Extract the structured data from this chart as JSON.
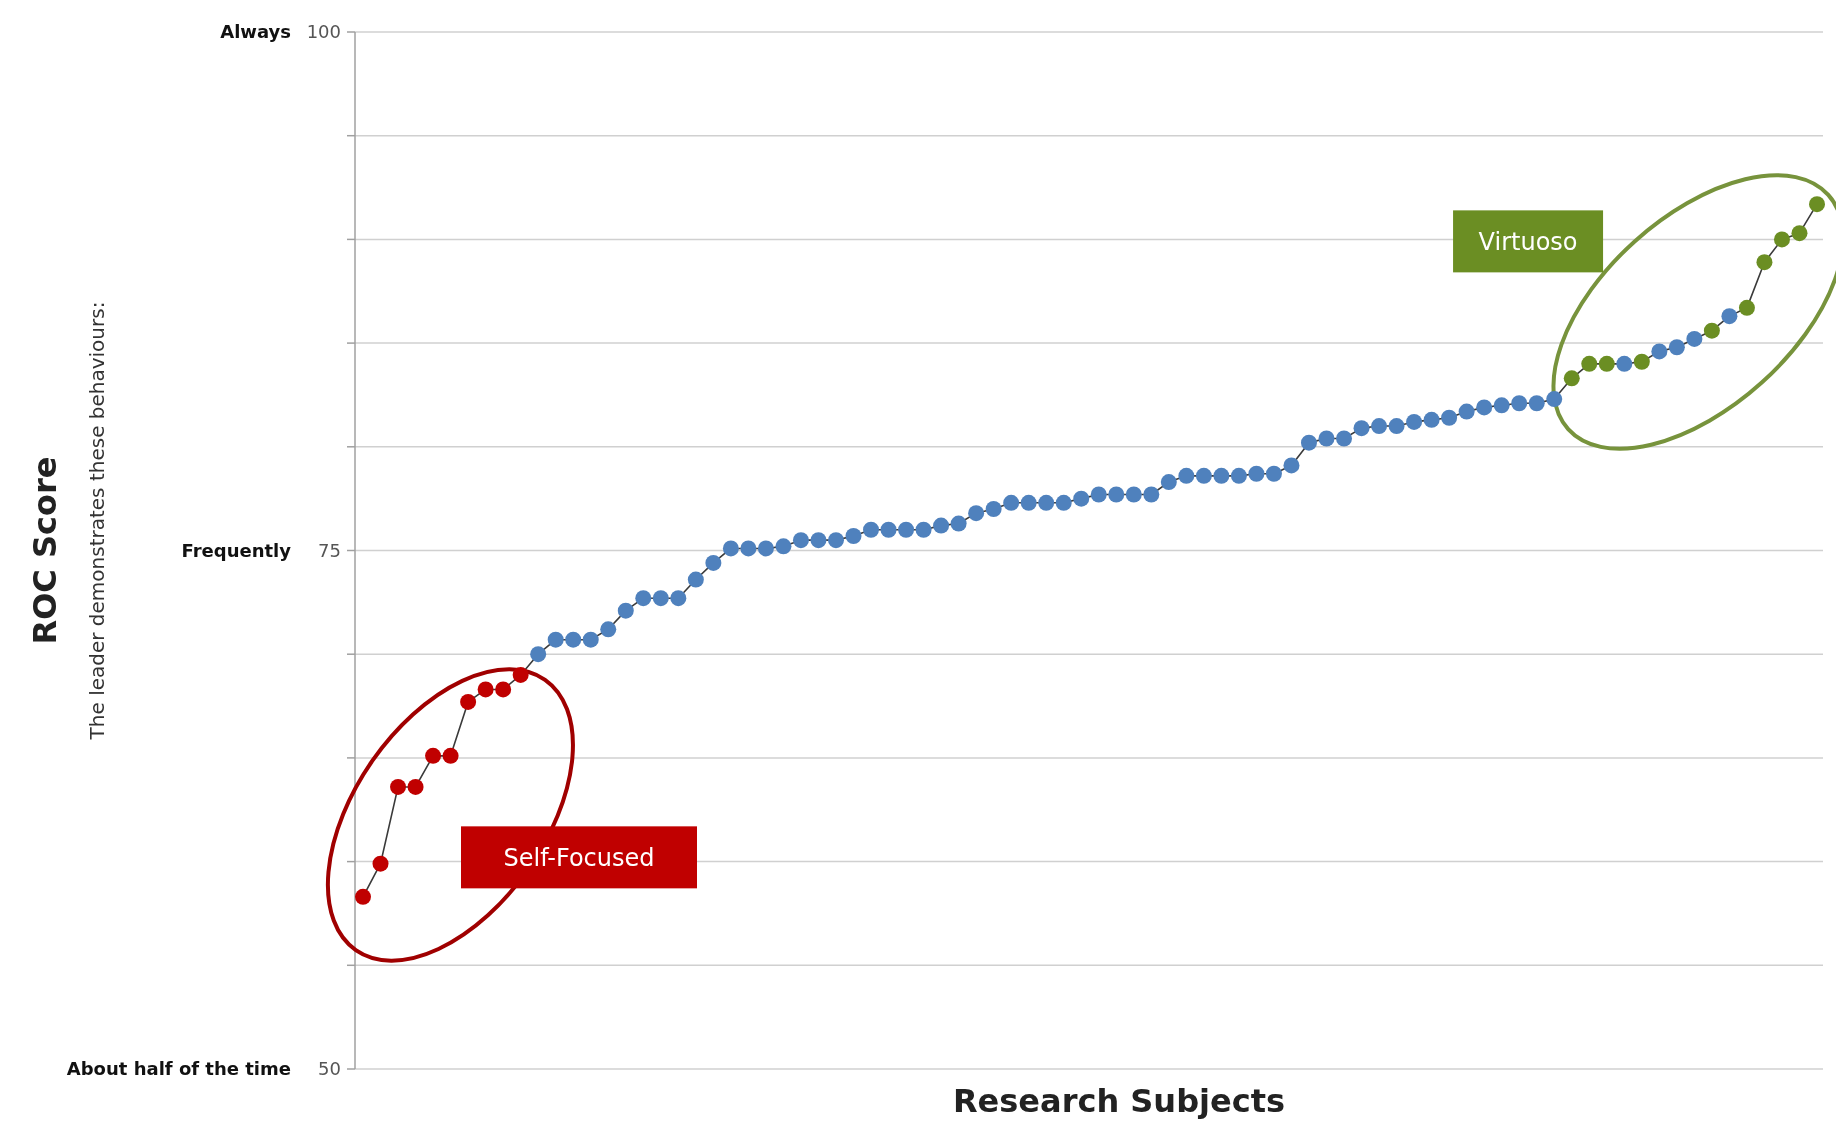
{
  "chart_data": {
    "type": "line",
    "xlabel": "Research Subjects",
    "annotations": [
      "The leader demonstrates these behaviours:",
      "Self-Focused",
      "Virtuoso",
      "About half of the time",
      "Frequently",
      "Always",
      "ROC Score"
    ],
    "categories": [
      null,
      null,
      null,
      null,
      null,
      null,
      null,
      null,
      null,
      null,
      null,
      null,
      null,
      null,
      null,
      null,
      null,
      null,
      null,
      null,
      null,
      null,
      null,
      null,
      null,
      null,
      null,
      null,
      null,
      null,
      null,
      null,
      null,
      null,
      null,
      null,
      null,
      null,
      null,
      null,
      null,
      null,
      null,
      null,
      null,
      null,
      null,
      null,
      null,
      null,
      null,
      null,
      null,
      null,
      null,
      null,
      null,
      null,
      null,
      null,
      null,
      null,
      null,
      null,
      null,
      null,
      null,
      null,
      null,
      null,
      null,
      null,
      null,
      null,
      null,
      null,
      null,
      null,
      null,
      null,
      null,
      null,
      null,
      null
    ],
    "series": [
      {
        "color": "#3a3a3a",
        "values": [
          58.3,
          59.9,
          63.6,
          63.6,
          65.1,
          65.1,
          67.7,
          68.3,
          68.3,
          69.0,
          70.0,
          70.7,
          70.7,
          70.7,
          71.2,
          72.1,
          72.7,
          72.7,
          72.7,
          73.6,
          74.4,
          75.1,
          75.1,
          75.1,
          75.2,
          75.5,
          75.5,
          75.5,
          75.7,
          76.0,
          76.0,
          76.0,
          76.0,
          76.2,
          76.3,
          76.8,
          77.0,
          77.3,
          77.3,
          77.3,
          77.3,
          77.5,
          77.7,
          77.7,
          77.7,
          77.7,
          78.3,
          78.6,
          78.6,
          78.6,
          78.6,
          78.7,
          78.7,
          79.1,
          80.2,
          80.4,
          80.4,
          80.9,
          81.0,
          81.0,
          81.2,
          81.3,
          81.4,
          81.7,
          81.9,
          82.0,
          82.1,
          82.1,
          82.3,
          83.3,
          84.0,
          84.0,
          84.0,
          84.1,
          84.6,
          84.8,
          85.2,
          85.6,
          86.3,
          86.7,
          88.9,
          90.0,
          90.3,
          91.7
        ],
        "colors": [
          "#c00000",
          "#c00000",
          "#c00000",
          "#c00000",
          "#c00000",
          "#c00000",
          "#c00000",
          "#c00000",
          "#c00000",
          "#c00000",
          "#4f81bd",
          "#4f81bd",
          "#4f81bd",
          "#4f81bd",
          "#4f81bd",
          "#4f81bd",
          "#4f81bd",
          "#4f81bd",
          "#4f81bd",
          "#4f81bd",
          "#4f81bd",
          "#4f81bd",
          "#4f81bd",
          "#4f81bd",
          "#4f81bd",
          "#4f81bd",
          "#4f81bd",
          "#4f81bd",
          "#4f81bd",
          "#4f81bd",
          "#4f81bd",
          "#4f81bd",
          "#4f81bd",
          "#4f81bd",
          "#4f81bd",
          "#4f81bd",
          "#4f81bd",
          "#4f81bd",
          "#4f81bd",
          "#4f81bd",
          "#4f81bd",
          "#4f81bd",
          "#4f81bd",
          "#4f81bd",
          "#4f81bd",
          "#4f81bd",
          "#4f81bd",
          "#4f81bd",
          "#4f81bd",
          "#4f81bd",
          "#4f81bd",
          "#4f81bd",
          "#4f81bd",
          "#4f81bd",
          "#4f81bd",
          "#4f81bd",
          "#4f81bd",
          "#4f81bd",
          "#4f81bd",
          "#4f81bd",
          "#4f81bd",
          "#4f81bd",
          "#4f81bd",
          "#4f81bd",
          "#4f81bd",
          "#4f81bd",
          "#4f81bd",
          "#4f81bd",
          "#4f81bd",
          "#6b8e23",
          "#6b8e23",
          "#6b8e23",
          "#4f81bd",
          "#6b8e23",
          "#4f81bd",
          "#4f81bd",
          "#4f81bd",
          "#6b8e23",
          "#4f81bd",
          "#6b8e23",
          "#6b8e23",
          "#6b8e23",
          "#6b8e23",
          "#6b8e23"
        ]
      }
    ],
    "ylim": [
      50,
      100
    ],
    "yticks": [
      50,
      {
        "value": 55,
        "label": null
      },
      {
        "value": 60,
        "label": null
      },
      {
        "value": 65,
        "label": null
      },
      {
        "value": 70,
        "label": null
      },
      75,
      {
        "value": 80,
        "label": null
      },
      {
        "value": 85,
        "label": null
      },
      {
        "value": 90,
        "label": null
      },
      {
        "value": 95,
        "label": null
      },
      100
    ],
    "grid": "y",
    "marker": "circle",
    "line_style": "solid"
  }
}
